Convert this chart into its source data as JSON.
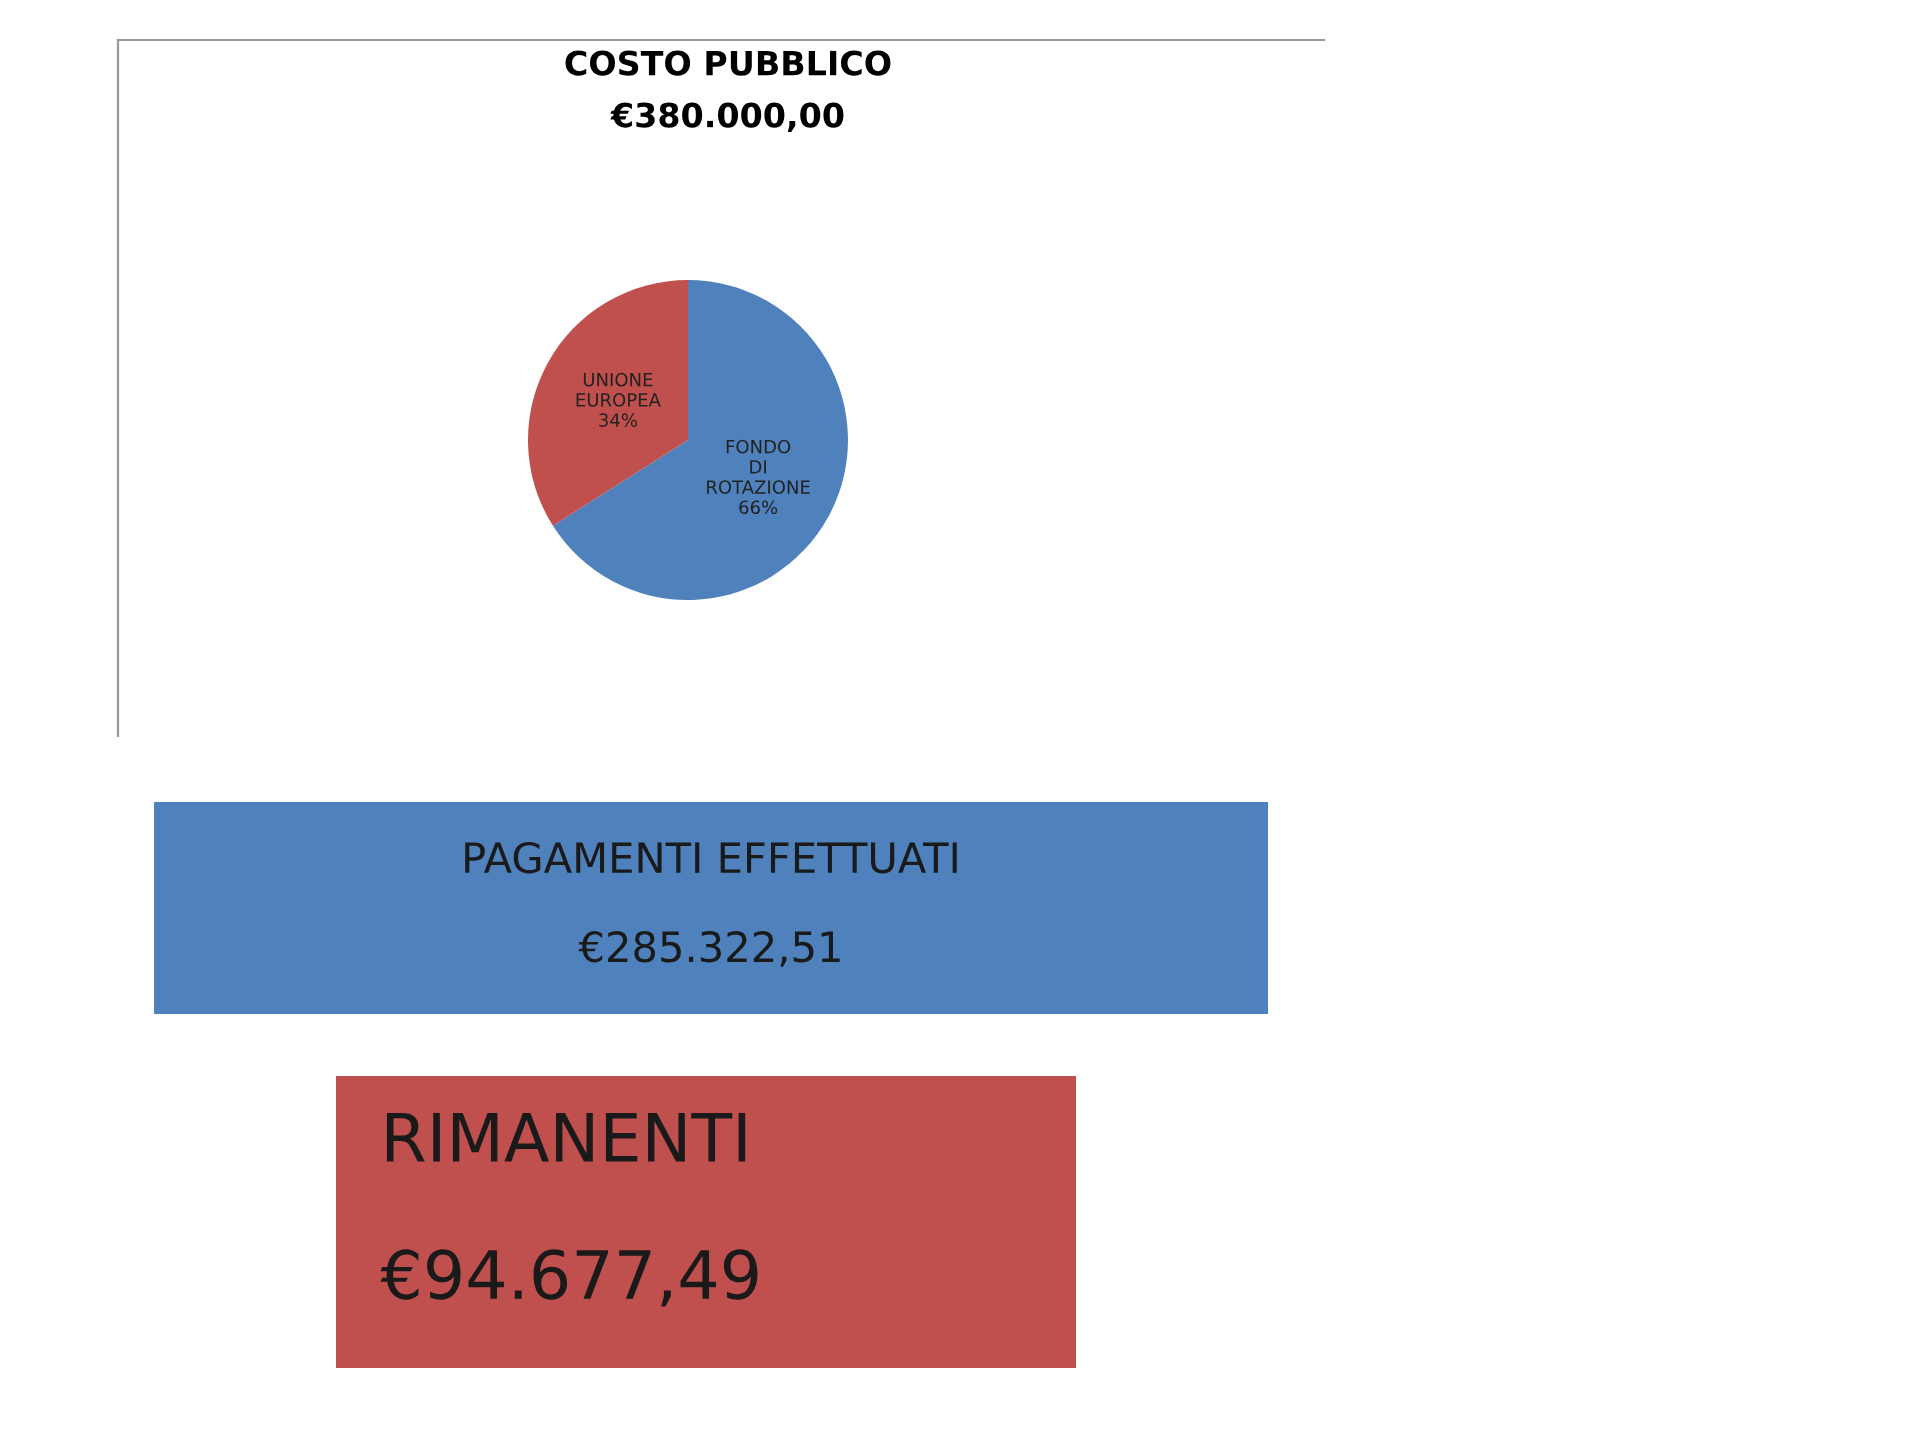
{
  "chart_data": [
    {
      "type": "pie",
      "title": "COSTO PUBBLICO",
      "subtitle": "€380.000,00",
      "categories": [
        "FONDO DI ROTAZIONE",
        "UNIONE EUROPEA"
      ],
      "values": [
        66,
        34
      ],
      "colors": [
        "#4f81bd",
        "#c0504d"
      ],
      "value_labels": [
        "66%",
        "34%"
      ]
    },
    {
      "type": "other",
      "title": "PAGAMENTI EFFETTUATI",
      "subtitle": "€285.322,51",
      "colors": [
        "#4f81bd"
      ]
    },
    {
      "type": "other",
      "title": "RIMANENTI",
      "subtitle": "€94.677,49",
      "colors": [
        "#c0504d"
      ]
    }
  ]
}
